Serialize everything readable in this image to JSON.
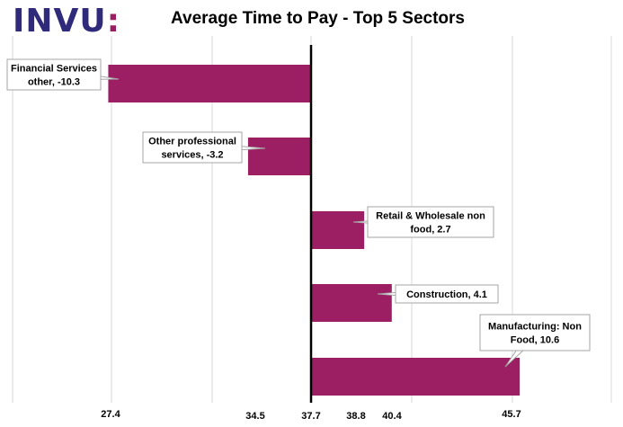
{
  "logo": {
    "text": "INVU",
    "colon": ":"
  },
  "colors": {
    "bar": "#9c1f63",
    "logo_text": "#2f2b7a",
    "logo_accent": "#9a1f62",
    "gridline": "#d9d9d9",
    "baseline": "#000000"
  },
  "chart_data": {
    "type": "bar",
    "orientation": "horizontal",
    "title": "Average Time to Pay - Top 5 Sectors",
    "baseline": 37.7,
    "categories": [
      "Financial Services other",
      "Other professional services",
      "Retail & Wholesale non food",
      "Construction",
      "Manufacturing: Non Food"
    ],
    "values": [
      -10.3,
      -3.2,
      2.7,
      4.1,
      10.6
    ],
    "data_labels": [
      [
        "Financial  Services",
        "other, -10.3"
      ],
      [
        "Other professional",
        "services, -3.2"
      ],
      [
        "Retail & Wholesale  non",
        "food, 2.7"
      ],
      [
        "Construction, 4.1"
      ],
      [
        "Manufacturing:  Non",
        "Food, 10.6"
      ]
    ],
    "x_tick_labels": [
      "27.4",
      "34.5",
      "37.7",
      "38.8",
      "40.4",
      "45.7"
    ],
    "x_tick_values": [
      27.4,
      34.5,
      37.7,
      38.8,
      40.4,
      45.7
    ],
    "grid": true
  }
}
